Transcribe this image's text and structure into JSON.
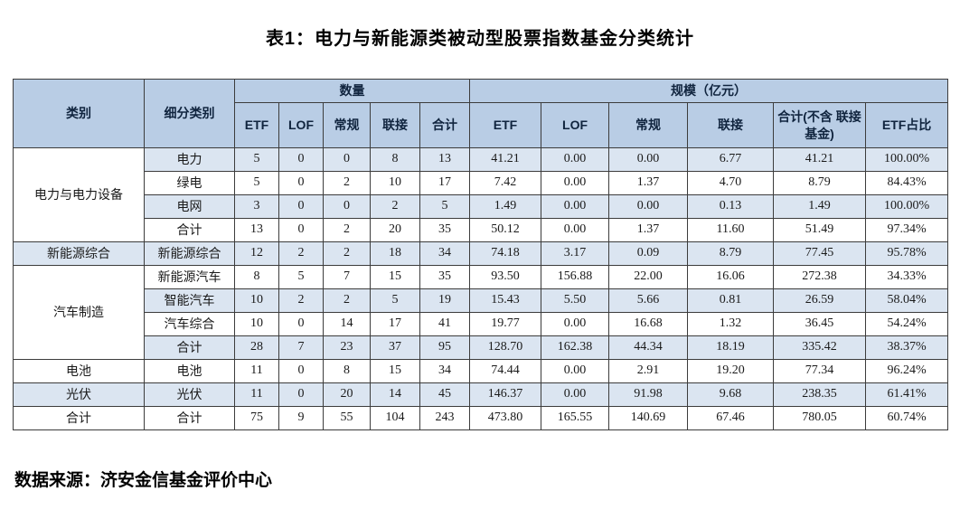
{
  "title": "表1：电力与新能源类被动型股票指数基金分类统计",
  "source": "数据来源：济安金信基金评价中心",
  "colors": {
    "header_bg": "#b9cde5",
    "stripe_bg": "#dbe5f1",
    "border": "#3c3c3c"
  },
  "table": {
    "header": {
      "category": "类别",
      "subcategory": "细分类别",
      "quantity_group": "数量",
      "scale_group": "规模（亿元）",
      "quantity_cols": [
        "ETF",
        "LOF",
        "常规",
        "联接",
        "合计"
      ],
      "scale_cols": [
        "ETF",
        "LOF",
        "常规",
        "联接",
        "合计(不含 联接基金)",
        "ETF占比"
      ]
    },
    "groups": [
      {
        "category": "电力与电力设备",
        "rows": [
          {
            "sub": "电力",
            "qty": [
              "5",
              "0",
              "0",
              "8",
              "13"
            ],
            "scale": [
              "41.21",
              "0.00",
              "0.00",
              "6.77",
              "41.21",
              "100.00%"
            ]
          },
          {
            "sub": "绿电",
            "qty": [
              "5",
              "0",
              "2",
              "10",
              "17"
            ],
            "scale": [
              "7.42",
              "0.00",
              "1.37",
              "4.70",
              "8.79",
              "84.43%"
            ]
          },
          {
            "sub": "电网",
            "qty": [
              "3",
              "0",
              "0",
              "2",
              "5"
            ],
            "scale": [
              "1.49",
              "0.00",
              "0.00",
              "0.13",
              "1.49",
              "100.00%"
            ]
          },
          {
            "sub": "合计",
            "qty": [
              "13",
              "0",
              "2",
              "20",
              "35"
            ],
            "scale": [
              "50.12",
              "0.00",
              "1.37",
              "11.60",
              "51.49",
              "97.34%"
            ]
          }
        ]
      },
      {
        "category": "新能源综合",
        "rows": [
          {
            "sub": "新能源综合",
            "qty": [
              "12",
              "2",
              "2",
              "18",
              "34"
            ],
            "scale": [
              "74.18",
              "3.17",
              "0.09",
              "8.79",
              "77.45",
              "95.78%"
            ]
          }
        ]
      },
      {
        "category": "汽车制造",
        "rows": [
          {
            "sub": "新能源汽车",
            "qty": [
              "8",
              "5",
              "7",
              "15",
              "35"
            ],
            "scale": [
              "93.50",
              "156.88",
              "22.00",
              "16.06",
              "272.38",
              "34.33%"
            ]
          },
          {
            "sub": "智能汽车",
            "qty": [
              "10",
              "2",
              "2",
              "5",
              "19"
            ],
            "scale": [
              "15.43",
              "5.50",
              "5.66",
              "0.81",
              "26.59",
              "58.04%"
            ]
          },
          {
            "sub": "汽车综合",
            "qty": [
              "10",
              "0",
              "14",
              "17",
              "41"
            ],
            "scale": [
              "19.77",
              "0.00",
              "16.68",
              "1.32",
              "36.45",
              "54.24%"
            ]
          },
          {
            "sub": "合计",
            "qty": [
              "28",
              "7",
              "23",
              "37",
              "95"
            ],
            "scale": [
              "128.70",
              "162.38",
              "44.34",
              "18.19",
              "335.42",
              "38.37%"
            ]
          }
        ]
      },
      {
        "category": "电池",
        "rows": [
          {
            "sub": "电池",
            "qty": [
              "11",
              "0",
              "8",
              "15",
              "34"
            ],
            "scale": [
              "74.44",
              "0.00",
              "2.91",
              "19.20",
              "77.34",
              "96.24%"
            ]
          }
        ]
      },
      {
        "category": "光伏",
        "rows": [
          {
            "sub": "光伏",
            "qty": [
              "11",
              "0",
              "20",
              "14",
              "45"
            ],
            "scale": [
              "146.37",
              "0.00",
              "91.98",
              "9.68",
              "238.35",
              "61.41%"
            ]
          }
        ]
      },
      {
        "category": "合计",
        "rows": [
          {
            "sub": "合计",
            "qty": [
              "75",
              "9",
              "55",
              "104",
              "243"
            ],
            "scale": [
              "473.80",
              "165.55",
              "140.69",
              "67.46",
              "780.05",
              "60.74%"
            ]
          }
        ]
      }
    ]
  }
}
